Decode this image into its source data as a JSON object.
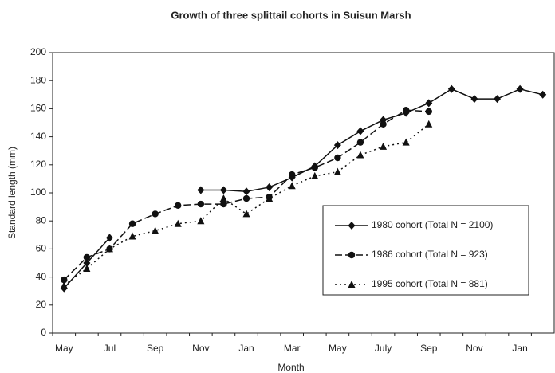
{
  "chart_data": {
    "type": "line",
    "title": "Growth of three splittail cohorts in Suisun Marsh",
    "x_label": "Month",
    "y_label": "Standard length (mm)",
    "categories": [
      "May",
      null,
      "Jul",
      null,
      "Sep",
      null,
      "Nov",
      null,
      "Jan",
      null,
      "Mar",
      null,
      "May",
      null,
      "July",
      null,
      "Sep",
      null,
      "Nov",
      null,
      "Jan",
      null
    ],
    "ylim": [
      0,
      200
    ],
    "yticks": [
      0,
      20,
      40,
      60,
      80,
      100,
      120,
      140,
      160,
      180,
      200
    ],
    "grid": false,
    "series": [
      {
        "name": "1980 cohort (Total N = 2100)",
        "color": "#111111",
        "marker": "diamond",
        "dash": "solid",
        "values": [
          32,
          50,
          68,
          null,
          null,
          null,
          102,
          102,
          101,
          104,
          111,
          119,
          134,
          144,
          152,
          157,
          164,
          174,
          167,
          167,
          174,
          170
        ]
      },
      {
        "name": "1986 cohort (Total N = 923)",
        "color": "#111111",
        "marker": "circle",
        "dash": "long",
        "values": [
          38,
          54,
          60,
          78,
          85,
          91,
          92,
          92,
          96,
          97,
          113,
          118,
          125,
          136,
          149,
          159,
          158,
          null,
          null,
          null,
          null,
          null
        ]
      },
      {
        "name": "1995 cohort (Total N = 881)",
        "color": "#111111",
        "marker": "triangle",
        "dash": "dotted",
        "values": [
          34,
          46,
          60,
          69,
          73,
          78,
          80,
          96,
          85,
          96,
          105,
          112,
          115,
          127,
          133,
          136,
          149,
          null,
          null,
          null,
          null,
          null
        ]
      }
    ]
  }
}
